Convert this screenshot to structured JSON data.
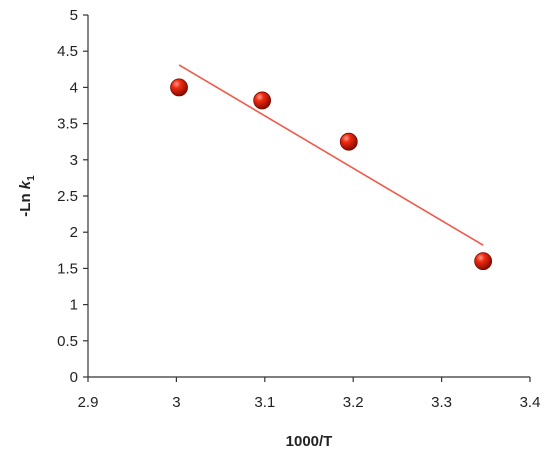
{
  "chart_data": {
    "type": "scatter",
    "title": "",
    "xlabel": "1000/T",
    "ylabel": "-Ln k1",
    "ylabel_main": "-Ln ",
    "ylabel_k": "k",
    "ylabel_sub": "1",
    "xlim": [
      2.9,
      3.4
    ],
    "ylim": [
      0,
      5
    ],
    "xticks": [
      "2.9",
      "3",
      "3.1",
      "3.2",
      "3.3",
      "3.4"
    ],
    "yticks": [
      "0",
      "0.5",
      "1",
      "1.5",
      "2",
      "2.5",
      "3",
      "3.5",
      "4",
      "4.5",
      "5"
    ],
    "grid": false,
    "legend": "none",
    "series": [
      {
        "points": [
          {
            "x": 3.003,
            "y": 4.0
          },
          {
            "x": 3.097,
            "y": 3.82
          },
          {
            "x": 3.195,
            "y": 3.25
          },
          {
            "x": 3.347,
            "y": 1.6
          }
        ],
        "color": "#e8200a"
      }
    ],
    "trendline": {
      "x": [
        3.003,
        3.347
      ],
      "y": [
        4.31,
        1.82
      ],
      "color": "#f05a4a"
    }
  }
}
